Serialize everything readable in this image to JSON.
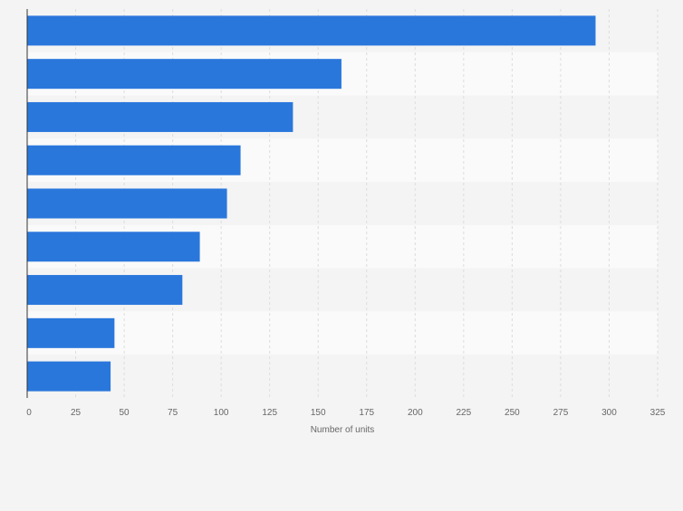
{
  "chart_data": {
    "type": "bar",
    "orientation": "horizontal",
    "categories": [
      "",
      "",
      "",
      "",
      "",
      "",
      "",
      "",
      ""
    ],
    "values": [
      293,
      162,
      137,
      110,
      103,
      89,
      80,
      45,
      43
    ],
    "xlabel": "Number of units",
    "ylabel": "",
    "xlim": [
      0,
      325
    ],
    "xticks": [
      0,
      25,
      50,
      75,
      100,
      125,
      150,
      175,
      200,
      225,
      250,
      275,
      300,
      325
    ],
    "grid": true,
    "colors": {
      "bar": "#2a77dc",
      "plot_band_a": "#f4f4f4",
      "plot_band_b": "#fafafa",
      "grid": "#dddddd",
      "axis": "#333333",
      "tick_text": "#666666"
    }
  }
}
